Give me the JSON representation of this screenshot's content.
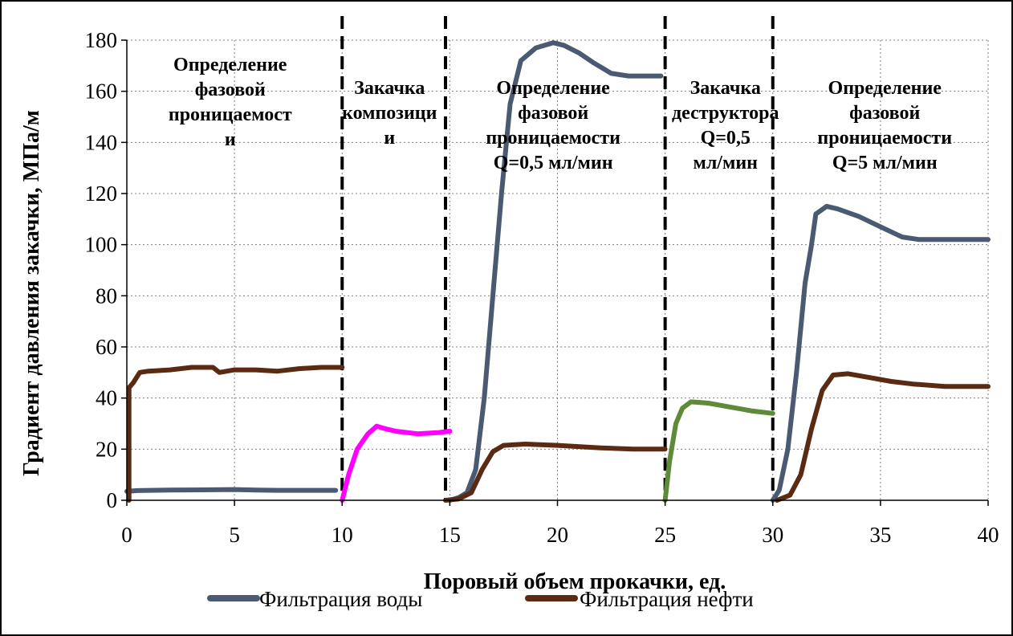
{
  "chart_data": {
    "type": "line",
    "xlabel": "Поровый объем прокачки, ед.",
    "ylabel": "Градиент давления закачки, МПа/м",
    "xlim": [
      0,
      40
    ],
    "ylim": [
      0,
      180
    ],
    "xticks": [
      0,
      5,
      10,
      15,
      20,
      25,
      30,
      35,
      40
    ],
    "yticks": [
      0,
      20,
      40,
      60,
      80,
      100,
      120,
      140,
      160,
      180
    ],
    "grid": true,
    "legend_position": "bottom",
    "stage_boundaries": [
      10,
      14.8,
      25,
      30
    ],
    "annotations": [
      {
        "lines": [
          "Определение",
          "фазовой",
          "проницаемост",
          "и"
        ],
        "x": 4.8,
        "y": 168
      },
      {
        "lines": [
          "Закачка",
          "композици",
          "и"
        ],
        "x": 12.2,
        "y": 159
      },
      {
        "lines": [
          "Определение",
          "фазовой",
          "проницаемости",
          "Q=0,5 мл/мин"
        ],
        "x": 19.8,
        "y": 159
      },
      {
        "lines": [
          "Закачка",
          "деструктора",
          "Q=0,5",
          "мл/мин"
        ],
        "x": 27.8,
        "y": 159
      },
      {
        "lines": [
          "Определение",
          "фазовой",
          "проницаемости",
          "Q=5 мл/мин"
        ],
        "x": 35.2,
        "y": 159
      }
    ],
    "series": [
      {
        "name": "Фильтрация воды",
        "color": "#4a5a72",
        "legend": true,
        "segments": [
          [
            [
              0,
              3.5
            ],
            [
              0.5,
              3.8
            ],
            [
              2,
              4
            ],
            [
              4,
              4.1
            ],
            [
              5,
              4.2
            ],
            [
              6,
              4
            ],
            [
              7,
              3.9
            ],
            [
              8,
              3.9
            ],
            [
              9.7,
              3.9
            ]
          ],
          [
            [
              15,
              0
            ],
            [
              15.4,
              1
            ],
            [
              15.8,
              3
            ],
            [
              16.2,
              12
            ],
            [
              16.6,
              40
            ],
            [
              17,
              80
            ],
            [
              17.4,
              120
            ],
            [
              17.8,
              155
            ],
            [
              18.3,
              172
            ],
            [
              19,
              177
            ],
            [
              19.8,
              179
            ],
            [
              20.3,
              178
            ],
            [
              21,
              175
            ],
            [
              21.7,
              171
            ],
            [
              22.5,
              167
            ],
            [
              23.3,
              166
            ],
            [
              24,
              166
            ],
            [
              24.8,
              166
            ]
          ],
          [
            [
              30,
              0
            ],
            [
              30.3,
              4
            ],
            [
              30.7,
              20
            ],
            [
              31.1,
              50
            ],
            [
              31.5,
              85
            ],
            [
              31.8,
              100
            ],
            [
              32,
              112
            ],
            [
              32.5,
              115
            ],
            [
              33,
              114
            ],
            [
              34,
              111
            ],
            [
              35,
              107
            ],
            [
              36,
              103
            ],
            [
              36.8,
              102
            ],
            [
              38,
              102
            ],
            [
              39,
              102
            ],
            [
              40,
              102
            ]
          ]
        ]
      },
      {
        "name": "Фильтрация нефти",
        "color": "#5a2a12",
        "legend": true,
        "segments": [
          [
            [
              0.1,
              0
            ],
            [
              0.1,
              44
            ],
            [
              0.3,
              46
            ],
            [
              0.6,
              50
            ],
            [
              1,
              50.5
            ],
            [
              2,
              51
            ],
            [
              3,
              52
            ],
            [
              4,
              52
            ],
            [
              4.3,
              50
            ],
            [
              5,
              51
            ],
            [
              6,
              51
            ],
            [
              7,
              50.5
            ],
            [
              8,
              51.5
            ],
            [
              9,
              52
            ],
            [
              10,
              52
            ]
          ],
          [
            [
              14.8,
              0
            ],
            [
              15.4,
              0.5
            ],
            [
              16,
              3
            ],
            [
              16.5,
              12
            ],
            [
              17,
              19
            ],
            [
              17.5,
              21.5
            ],
            [
              18.5,
              22
            ],
            [
              20,
              21.5
            ],
            [
              22,
              20.5
            ],
            [
              23.5,
              20
            ],
            [
              25,
              20
            ]
          ],
          [
            [
              30.2,
              0
            ],
            [
              30.8,
              2
            ],
            [
              31.3,
              10
            ],
            [
              31.8,
              28
            ],
            [
              32.3,
              43
            ],
            [
              32.8,
              49
            ],
            [
              33.5,
              49.5
            ],
            [
              34.5,
              48
            ],
            [
              35.5,
              46.5
            ],
            [
              36.5,
              45.5
            ],
            [
              38,
              44.5
            ],
            [
              40,
              44.5
            ]
          ]
        ]
      },
      {
        "name": "",
        "color": "#ff00ff",
        "legend": false,
        "segments": [
          [
            [
              10,
              0
            ],
            [
              10.3,
              10
            ],
            [
              10.7,
              20
            ],
            [
              11.2,
              26
            ],
            [
              11.6,
              29
            ],
            [
              12,
              28
            ],
            [
              12.5,
              27
            ],
            [
              13.5,
              26
            ],
            [
              14.5,
              26.5
            ],
            [
              15,
              27
            ]
          ]
        ]
      },
      {
        "name": "",
        "color": "#5e8a3a",
        "legend": false,
        "segments": [
          [
            [
              25,
              0
            ],
            [
              25.2,
              15
            ],
            [
              25.5,
              30
            ],
            [
              25.8,
              36
            ],
            [
              26.2,
              38.5
            ],
            [
              27,
              38
            ],
            [
              28,
              36.5
            ],
            [
              29,
              35
            ],
            [
              30,
              34
            ]
          ]
        ]
      }
    ]
  }
}
